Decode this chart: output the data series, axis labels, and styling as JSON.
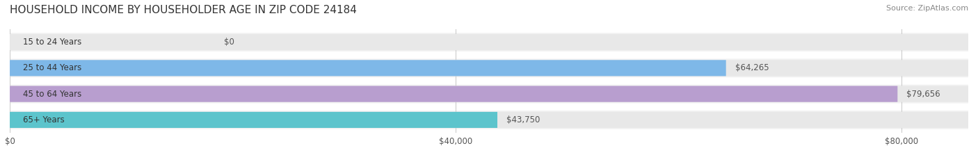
{
  "title": "HOUSEHOLD INCOME BY HOUSEHOLDER AGE IN ZIP CODE 24184",
  "source": "Source: ZipAtlas.com",
  "categories": [
    "15 to 24 Years",
    "25 to 44 Years",
    "45 to 64 Years",
    "65+ Years"
  ],
  "values": [
    0,
    64265,
    79656,
    43750
  ],
  "bar_colors": [
    "#f4a0a0",
    "#7eb8e8",
    "#b89ecf",
    "#5cc4cc"
  ],
  "bar_bg_color": "#f0f0f0",
  "value_labels": [
    "$0",
    "$64,265",
    "$79,656",
    "$43,750"
  ],
  "x_ticks": [
    0,
    40000,
    80000
  ],
  "x_tick_labels": [
    "$0",
    "$40,000",
    "$80,000"
  ],
  "xlim": [
    0,
    86000
  ],
  "title_fontsize": 11,
  "source_fontsize": 8,
  "label_fontsize": 8.5,
  "value_fontsize": 8.5,
  "tick_fontsize": 8.5,
  "background_color": "#ffffff",
  "row_bg_colors": [
    "#f9f9f9",
    "#f9f9f9",
    "#f9f9f9",
    "#f9f9f9"
  ]
}
